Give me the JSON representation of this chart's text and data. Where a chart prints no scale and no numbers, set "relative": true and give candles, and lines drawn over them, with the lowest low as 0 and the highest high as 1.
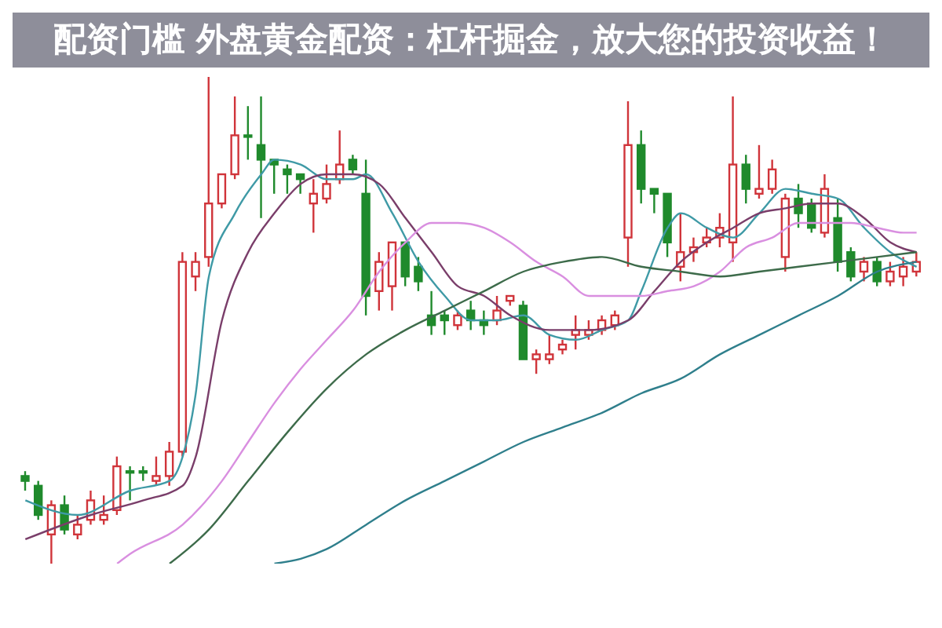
{
  "chart_data": {
    "type": "candlestick",
    "title": "配资门槛 外盘黄金配资：杠杆掘金，放大您的投资收益！",
    "relative": true,
    "tick_labels": false,
    "categories": [
      null,
      null,
      null,
      null,
      null,
      null,
      null,
      null,
      null,
      null,
      null,
      null,
      null,
      null,
      null,
      null,
      null,
      null,
      null,
      null,
      null,
      null,
      null,
      null,
      null,
      null,
      null,
      null,
      null,
      null,
      null,
      null,
      null,
      null,
      null,
      null,
      null,
      null,
      null,
      null,
      null,
      null,
      null,
      null,
      null,
      null,
      null,
      null,
      null,
      null,
      null,
      null,
      null,
      null,
      null,
      null,
      null,
      null,
      null,
      null,
      null,
      null,
      null,
      null,
      null,
      null,
      null,
      null,
      null
    ],
    "ohlc": [
      [
        0.18,
        0.19,
        0.15,
        0.17
      ],
      [
        0.16,
        0.17,
        0.09,
        0.1
      ],
      [
        0.06,
        0.13,
        0,
        0.12
      ],
      [
        0.12,
        0.14,
        0.06,
        0.07
      ],
      [
        0.06,
        0.1,
        0.05,
        0.08
      ],
      [
        0.09,
        0.15,
        0.08,
        0.13
      ],
      [
        0.09,
        0.14,
        0.08,
        0.1
      ],
      [
        0.11,
        0.22,
        0.1,
        0.2
      ],
      [
        0.19,
        0.2,
        0.13,
        0.19
      ],
      [
        0.19,
        0.2,
        0.17,
        0.19
      ],
      [
        0.17,
        0.22,
        0.16,
        0.18
      ],
      [
        0.18,
        0.25,
        0.16,
        0.23
      ],
      [
        0.23,
        0.64,
        0.22,
        0.62
      ],
      [
        0.59,
        0.64,
        0.56,
        0.62
      ],
      [
        0.63,
        1,
        0.61,
        0.74
      ],
      [
        0.74,
        0.8,
        0.73,
        0.8
      ],
      [
        0.8,
        0.96,
        0.79,
        0.88
      ],
      [
        0.88,
        0.94,
        0.83,
        0.88
      ],
      [
        0.86,
        0.96,
        0.71,
        0.83
      ],
      [
        0.83,
        0.83,
        0.76,
        0.82
      ],
      [
        0.81,
        0.82,
        0.76,
        0.8
      ],
      [
        0.8,
        0.8,
        0.76,
        0.79
      ],
      [
        0.74,
        0.79,
        0.68,
        0.76
      ],
      [
        0.75,
        0.82,
        0.74,
        0.78
      ],
      [
        0.79,
        0.89,
        0.78,
        0.82
      ],
      [
        0.83,
        0.84,
        0.8,
        0.81
      ],
      [
        0.76,
        0.83,
        0.51,
        0.55
      ],
      [
        0.56,
        0.64,
        0.52,
        0.62
      ],
      [
        0.57,
        0.66,
        0.52,
        0.66
      ],
      [
        0.66,
        0.66,
        0.57,
        0.59
      ],
      [
        0.61,
        0.63,
        0.56,
        0.58
      ],
      [
        0.51,
        0.56,
        0.47,
        0.49
      ],
      [
        0.51,
        0.52,
        0.47,
        0.5
      ],
      [
        0.49,
        0.52,
        0.48,
        0.51
      ],
      [
        0.52,
        0.54,
        0.48,
        0.5
      ],
      [
        0.5,
        0.52,
        0.47,
        0.49
      ],
      [
        0.5,
        0.55,
        0.49,
        0.52
      ],
      [
        0.54,
        0.55,
        0.53,
        0.55
      ],
      [
        0.53,
        0.54,
        0.42,
        0.42
      ],
      [
        0.42,
        0.44,
        0.39,
        0.43
      ],
      [
        0.42,
        0.47,
        0.41,
        0.43
      ],
      [
        0.44,
        0.46,
        0.43,
        0.45
      ],
      [
        0.47,
        0.51,
        0.44,
        0.48
      ],
      [
        0.47,
        0.5,
        0.46,
        0.48
      ],
      [
        0.48,
        0.51,
        0.47,
        0.5
      ],
      [
        0.49,
        0.52,
        0.48,
        0.51
      ],
      [
        0.67,
        0.95,
        0.61,
        0.86
      ],
      [
        0.86,
        0.89,
        0.74,
        0.77
      ],
      [
        0.77,
        0.77,
        0.72,
        0.76
      ],
      [
        0.76,
        0.76,
        0.63,
        0.66
      ],
      [
        0.61,
        0.72,
        0.58,
        0.64
      ],
      [
        0.64,
        0.67,
        0.62,
        0.65
      ],
      [
        0.66,
        0.69,
        0.65,
        0.67
      ],
      [
        0.67,
        0.72,
        0.65,
        0.69
      ],
      [
        0.66,
        0.96,
        0.62,
        0.82
      ],
      [
        0.82,
        0.84,
        0.74,
        0.77
      ],
      [
        0.76,
        0.86,
        0.75,
        0.77
      ],
      [
        0.77,
        0.83,
        0.76,
        0.81
      ],
      [
        0.63,
        0.76,
        0.6,
        0.75
      ],
      [
        0.75,
        0.78,
        0.69,
        0.72
      ],
      [
        0.74,
        0.75,
        0.68,
        0.69
      ],
      [
        0.68,
        0.8,
        0.67,
        0.77
      ],
      [
        0.71,
        0.75,
        0.6,
        0.62
      ],
      [
        0.64,
        0.65,
        0.58,
        0.59
      ],
      [
        0.6,
        0.63,
        0.58,
        0.62
      ],
      [
        0.62,
        0.63,
        0.57,
        0.58
      ],
      [
        0.58,
        0.62,
        0.57,
        0.6
      ],
      [
        0.59,
        0.63,
        0.57,
        0.61
      ],
      [
        0.6,
        0.64,
        0.59,
        0.62
      ]
    ],
    "series": [
      {
        "type": "line",
        "color": "#3f9aa6",
        "values": [
          0.13,
          null,
          null,
          null,
          0.1,
          null,
          null,
          null,
          0.15,
          null,
          null,
          0.17,
          0.22,
          0.35,
          0.59,
          null,
          0.72,
          null,
          0.8,
          0.83,
          null,
          0.82,
          null,
          0.79,
          null,
          0.79,
          0.8,
          null,
          0.72,
          null,
          0.62,
          null,
          0.55,
          null,
          0.5,
          null,
          0.5,
          null,
          0.51,
          null,
          0.47,
          null,
          0.46,
          null,
          0.48,
          null,
          0.5,
          0.56,
          null,
          0.69,
          0.72,
          null,
          0.69,
          null,
          0.67,
          null,
          0.72,
          null,
          0.77,
          null,
          0.76,
          null,
          0.75,
          null,
          0.69,
          null,
          0.64,
          null,
          0.61
        ]
      },
      {
        "type": "line",
        "color": "#7a3e6a",
        "values": [
          0.05,
          null,
          null,
          null,
          null,
          0.1,
          null,
          null,
          null,
          0.13,
          null,
          null,
          0.16,
          0.22,
          null,
          0.5,
          null,
          0.64,
          null,
          0.72,
          null,
          0.78,
          null,
          0.8,
          null,
          0.8,
          null,
          0.78,
          null,
          0.71,
          null,
          0.64,
          null,
          0.57,
          null,
          0.55,
          null,
          0.51,
          null,
          null,
          0.48,
          null,
          null,
          0.48,
          null,
          null,
          0.5,
          null,
          0.56,
          null,
          0.62,
          null,
          0.66,
          null,
          0.69,
          null,
          0.72,
          null,
          0.73,
          null,
          0.74,
          null,
          0.74,
          null,
          0.71,
          null,
          0.66,
          null,
          0.64
        ]
      },
      {
        "type": "line",
        "color": "#d98fe0",
        "values": [
          null,
          null,
          null,
          null,
          null,
          null,
          null,
          0,
          0.02,
          null,
          null,
          null,
          0.08,
          null,
          null,
          0.17,
          null,
          0.25,
          null,
          0.33,
          null,
          0.4,
          null,
          0.46,
          null,
          0.52,
          null,
          0.6,
          null,
          0.66,
          null,
          0.7,
          null,
          0.7,
          null,
          0.69,
          null,
          0.66,
          null,
          0.62,
          null,
          0.59,
          null,
          0.55,
          null,
          0.55,
          null,
          0.55,
          null,
          0.56,
          null,
          0.57,
          null,
          0.6,
          null,
          0.65,
          null,
          0.67,
          null,
          0.7,
          null,
          0.7,
          null,
          0.7,
          null,
          0.69,
          null,
          0.68,
          0.68
        ]
      },
      {
        "type": "line",
        "color": "#3d6b4a",
        "values": [
          null,
          null,
          null,
          null,
          null,
          null,
          null,
          null,
          null,
          null,
          null,
          0,
          null,
          null,
          0.07,
          null,
          null,
          0.17,
          null,
          null,
          0.27,
          null,
          null,
          0.36,
          null,
          null,
          0.43,
          null,
          null,
          0.48,
          null,
          null,
          0.52,
          null,
          null,
          0.56,
          null,
          null,
          0.6,
          null,
          null,
          0.62,
          null,
          null,
          0.63,
          null,
          null,
          0.61,
          null,
          null,
          0.6,
          null,
          null,
          0.59,
          null,
          null,
          0.6,
          null,
          null,
          0.61,
          null,
          null,
          0.62,
          null,
          null,
          0.63,
          null,
          null,
          0.64
        ]
      },
      {
        "type": "line",
        "color": "#2f7f8c",
        "values": [
          null,
          null,
          null,
          null,
          null,
          null,
          null,
          null,
          null,
          null,
          null,
          null,
          null,
          null,
          null,
          null,
          null,
          null,
          null,
          0,
          null,
          0.01,
          null,
          0.03,
          null,
          null,
          0.08,
          null,
          null,
          0.13,
          null,
          null,
          0.17,
          null,
          null,
          0.21,
          null,
          null,
          0.25,
          null,
          null,
          0.28,
          null,
          null,
          0.31,
          null,
          null,
          0.35,
          null,
          null,
          0.38,
          null,
          null,
          0.43,
          null,
          null,
          0.47,
          null,
          null,
          0.51,
          null,
          null,
          0.55,
          null,
          null,
          0.6,
          null,
          null,
          0.62
        ]
      }
    ]
  }
}
